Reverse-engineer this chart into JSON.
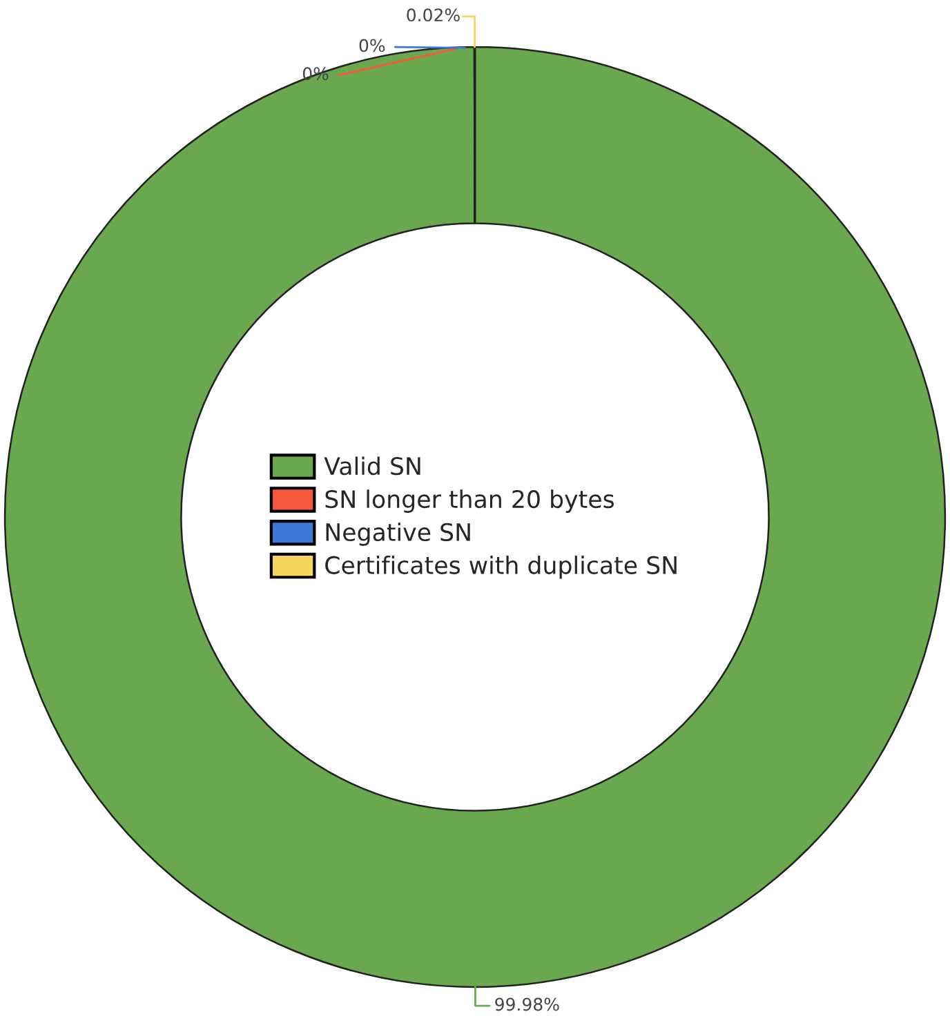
{
  "chart_data": {
    "type": "donut",
    "categories": [
      "Valid SN",
      "SN longer than 20 bytes",
      "Negative SN",
      "Certificates with duplicate SN"
    ],
    "values": [
      99.98,
      0,
      0,
      0.02
    ],
    "colors": [
      "#6aa84f",
      "#f4593b",
      "#3c78d8",
      "#f6d55c"
    ],
    "value_labels": [
      "99.98%",
      "0%",
      "0%",
      "0.02%"
    ],
    "legend": "center"
  }
}
